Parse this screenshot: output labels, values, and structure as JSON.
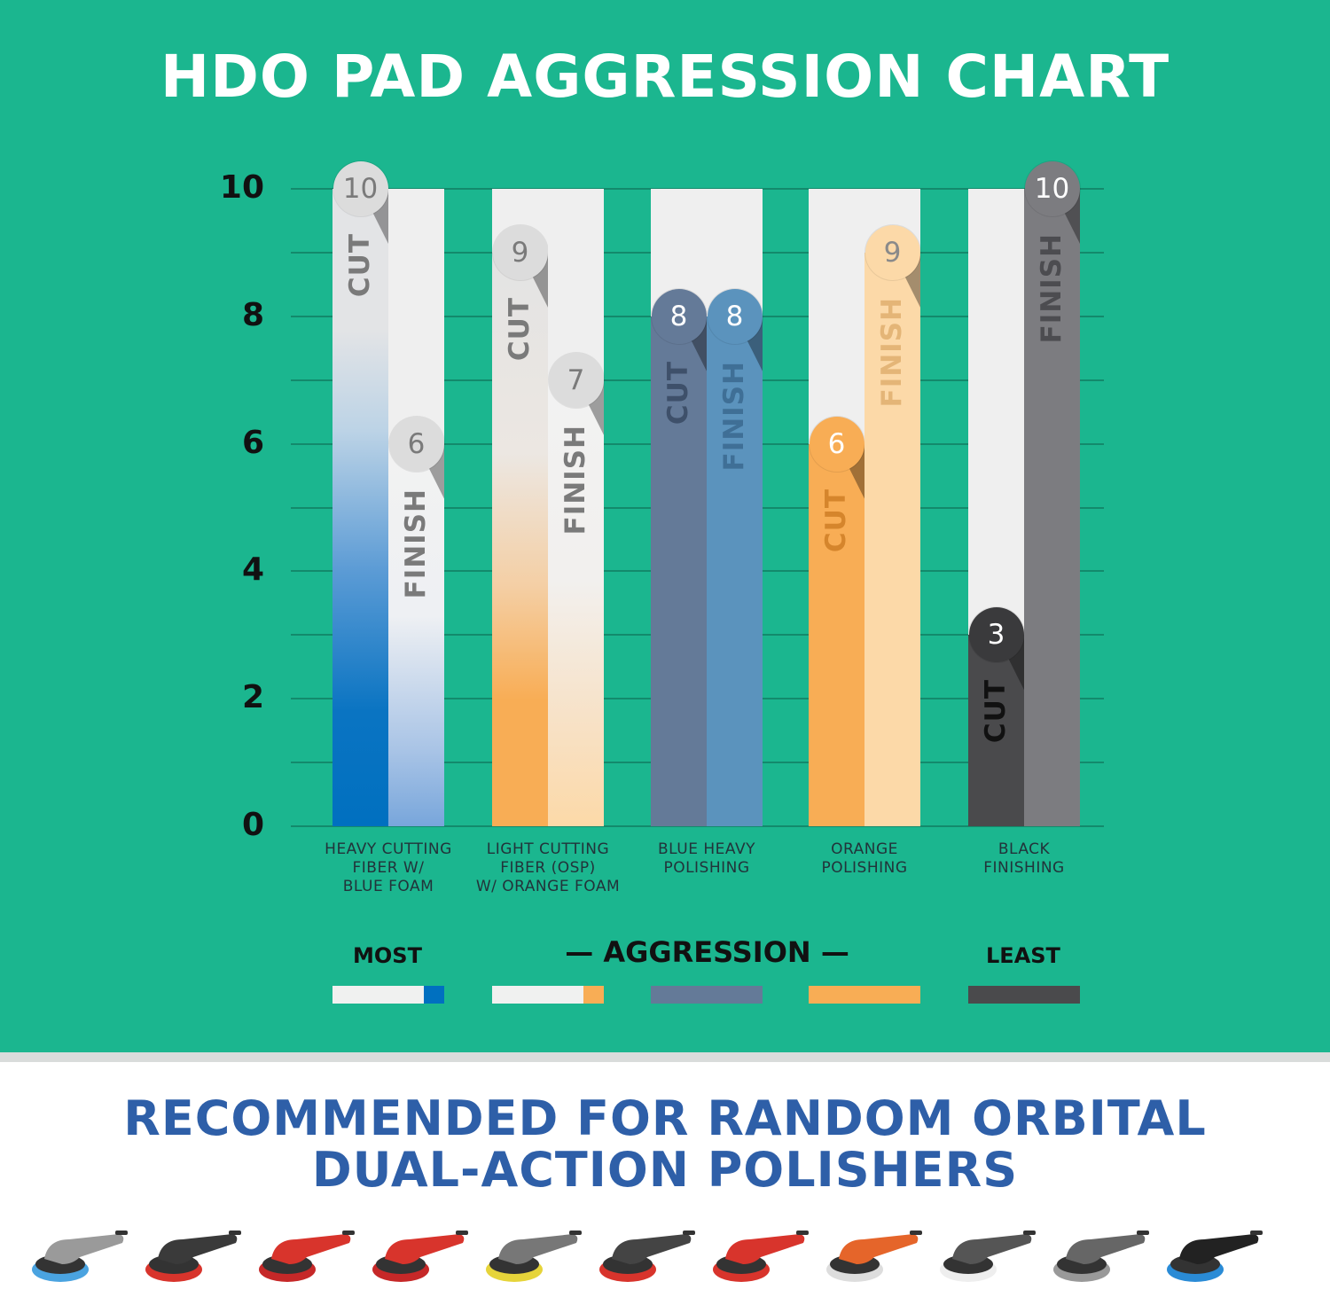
{
  "title": "HDO PAD AGGRESSION CHART",
  "chart_data": {
    "type": "bar",
    "title": "HDO PAD AGGRESSION CHART",
    "categories": [
      [
        "HEAVY CUTTING",
        "FIBER W/",
        "BLUE FOAM"
      ],
      [
        "LIGHT CUTTING",
        "FIBER (OSP)",
        "W/ ORANGE FOAM"
      ],
      [
        "BLUE HEAVY",
        "POLISHING"
      ],
      [
        "ORANGE",
        "POLISHING"
      ],
      [
        "BLACK",
        "FINISHING"
      ]
    ],
    "series": [
      {
        "name": "CUT",
        "values": [
          10,
          9,
          8,
          6,
          3
        ]
      },
      {
        "name": "FINISH",
        "values": [
          6,
          7,
          8,
          9,
          10
        ]
      }
    ],
    "ylim": [
      0,
      10
    ],
    "yticks": [
      "0",
      "2",
      "4",
      "6",
      "8",
      "10"
    ],
    "grid": true,
    "colors": {
      "cut": [
        "gradient-blue",
        "gradient-orange",
        "#647a98",
        "#f8ad55",
        "#4a4a4c"
      ],
      "finish": [
        "gradient-lightblue",
        "gradient-peach",
        "#5b93bd",
        "#fcd9a8",
        "#7c7c80"
      ]
    }
  },
  "legend": {
    "most": "MOST",
    "aggression": "— AGGRESSION —",
    "least": "LEAST",
    "swatches": [
      [
        "#f0f1f0",
        "#0070c0"
      ],
      [
        "#f0f1f0",
        "#f8ad55"
      ],
      [
        "#647a98"
      ],
      [
        "#f8ad55"
      ],
      [
        "#4a4a4c"
      ]
    ]
  },
  "recommendation": {
    "line1": "RECOMMENDED FOR RANDOM ORBITAL",
    "line2": "DUAL-ACTION POLISHERS"
  },
  "polishers": [
    {
      "pad_color": "#4aa3e0",
      "body_color": "#9a9a9a"
    },
    {
      "pad_color": "#d8342c",
      "body_color": "#3a3a3a"
    },
    {
      "pad_color": "#c62828",
      "body_color": "#d8342c"
    },
    {
      "pad_color": "#c62828",
      "body_color": "#d8342c"
    },
    {
      "pad_color": "#e6d43a",
      "body_color": "#777777"
    },
    {
      "pad_color": "#d8342c",
      "body_color": "#444444"
    },
    {
      "pad_color": "#d8342c",
      "body_color": "#d8342c"
    },
    {
      "pad_color": "#dddddd",
      "body_color": "#e5652a"
    },
    {
      "pad_color": "#eeeeee",
      "body_color": "#555555"
    },
    {
      "pad_color": "#999999",
      "body_color": "#666666"
    },
    {
      "pad_color": "#2a8bd6",
      "body_color": "#222222"
    }
  ]
}
